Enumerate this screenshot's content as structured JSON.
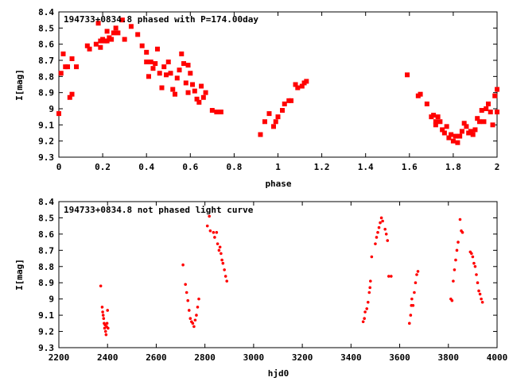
{
  "chart_data": [
    {
      "type": "scatter",
      "title": "194733+0834.8 phased with P=174.00day",
      "xlabel": "phase",
      "ylabel": "I[mag]",
      "xlim": [
        0,
        2
      ],
      "ylim": [
        8.4,
        9.3
      ],
      "y_inverted": true,
      "xticks": [
        "0",
        "0.2",
        "0.4",
        "0.6",
        "0.8",
        "1",
        "1.2",
        "1.4",
        "1.6",
        "1.8",
        "2"
      ],
      "yticks": [
        "8.4",
        "8.5",
        "8.6",
        "8.7",
        "8.8",
        "8.9",
        "9",
        "9.1",
        "9.2",
        "9.3"
      ],
      "marker_color": "#ff0000",
      "points": [
        [
          0.0,
          9.03
        ],
        [
          0.01,
          8.78
        ],
        [
          0.02,
          8.66
        ],
        [
          0.03,
          8.74
        ],
        [
          0.04,
          8.74
        ],
        [
          0.05,
          8.93
        ],
        [
          0.06,
          8.91
        ],
        [
          0.06,
          8.69
        ],
        [
          0.08,
          8.74
        ],
        [
          0.13,
          8.61
        ],
        [
          0.14,
          8.63
        ],
        [
          0.17,
          8.6
        ],
        [
          0.18,
          8.47
        ],
        [
          0.19,
          8.58
        ],
        [
          0.19,
          8.62
        ],
        [
          0.2,
          8.57
        ],
        [
          0.21,
          8.58
        ],
        [
          0.22,
          8.58
        ],
        [
          0.22,
          8.52
        ],
        [
          0.23,
          8.56
        ],
        [
          0.24,
          8.57
        ],
        [
          0.25,
          8.53
        ],
        [
          0.26,
          8.5
        ],
        [
          0.27,
          8.53
        ],
        [
          0.29,
          8.45
        ],
        [
          0.3,
          8.57
        ],
        [
          0.33,
          8.49
        ],
        [
          0.36,
          8.54
        ],
        [
          0.38,
          8.61
        ],
        [
          0.4,
          8.65
        ],
        [
          0.4,
          8.71
        ],
        [
          0.41,
          8.8
        ],
        [
          0.42,
          8.71
        ],
        [
          0.43,
          8.75
        ],
        [
          0.44,
          8.72
        ],
        [
          0.45,
          8.63
        ],
        [
          0.46,
          8.78
        ],
        [
          0.47,
          8.87
        ],
        [
          0.48,
          8.74
        ],
        [
          0.49,
          8.79
        ],
        [
          0.5,
          8.71
        ],
        [
          0.51,
          8.78
        ],
        [
          0.52,
          8.88
        ],
        [
          0.53,
          8.91
        ],
        [
          0.54,
          8.81
        ],
        [
          0.55,
          8.76
        ],
        [
          0.56,
          8.66
        ],
        [
          0.57,
          8.72
        ],
        [
          0.58,
          8.84
        ],
        [
          0.59,
          8.73
        ],
        [
          0.59,
          8.9
        ],
        [
          0.6,
          8.78
        ],
        [
          0.61,
          8.85
        ],
        [
          0.62,
          8.89
        ],
        [
          0.63,
          8.94
        ],
        [
          0.64,
          8.96
        ],
        [
          0.65,
          8.86
        ],
        [
          0.66,
          8.93
        ],
        [
          0.67,
          8.9
        ],
        [
          0.7,
          9.01
        ],
        [
          0.72,
          9.02
        ],
        [
          0.74,
          9.02
        ],
        [
          0.92,
          9.16
        ],
        [
          0.94,
          9.08
        ],
        [
          0.96,
          9.03
        ],
        [
          0.98,
          9.11
        ],
        [
          0.99,
          9.08
        ],
        [
          1.0,
          9.05
        ],
        [
          1.02,
          9.01
        ],
        [
          1.03,
          8.97
        ],
        [
          1.05,
          8.95
        ],
        [
          1.06,
          8.95
        ],
        [
          1.08,
          8.85
        ],
        [
          1.09,
          8.87
        ],
        [
          1.11,
          8.86
        ],
        [
          1.12,
          8.84
        ],
        [
          1.13,
          8.83
        ],
        [
          1.59,
          8.79
        ],
        [
          1.64,
          8.92
        ],
        [
          1.65,
          8.91
        ],
        [
          1.68,
          8.97
        ],
        [
          1.7,
          9.05
        ],
        [
          1.71,
          9.04
        ],
        [
          1.72,
          9.08
        ],
        [
          1.72,
          9.1
        ],
        [
          1.73,
          9.05
        ],
        [
          1.74,
          9.08
        ],
        [
          1.75,
          9.13
        ],
        [
          1.76,
          9.15
        ],
        [
          1.77,
          9.11
        ],
        [
          1.78,
          9.18
        ],
        [
          1.79,
          9.16
        ],
        [
          1.8,
          9.2
        ],
        [
          1.81,
          9.17
        ],
        [
          1.82,
          9.21
        ],
        [
          1.83,
          9.17
        ],
        [
          1.84,
          9.14
        ],
        [
          1.85,
          9.09
        ],
        [
          1.86,
          9.11
        ],
        [
          1.87,
          9.15
        ],
        [
          1.88,
          9.14
        ],
        [
          1.89,
          9.16
        ],
        [
          1.9,
          9.13
        ],
        [
          1.91,
          9.06
        ],
        [
          1.92,
          9.08
        ],
        [
          1.93,
          9.01
        ],
        [
          1.94,
          9.08
        ],
        [
          1.95,
          9.0
        ],
        [
          1.96,
          8.97
        ],
        [
          1.97,
          9.02
        ],
        [
          1.98,
          9.1
        ],
        [
          1.99,
          8.92
        ],
        [
          2.0,
          8.88
        ],
        [
          2.0,
          9.02
        ]
      ]
    },
    {
      "type": "scatter",
      "title": "194733+0834.8 not phased light curve",
      "xlabel": "hjd0",
      "ylabel": "I[mag]",
      "xlim": [
        2200,
        4000
      ],
      "ylim": [
        8.4,
        9.3
      ],
      "y_inverted": true,
      "xticks": [
        "2200",
        "2400",
        "2600",
        "2800",
        "3000",
        "3200",
        "3400",
        "3600",
        "3800",
        "4000"
      ],
      "yticks": [
        "8.4",
        "8.5",
        "8.6",
        "8.7",
        "8.8",
        "8.9",
        "9",
        "9.1",
        "9.2",
        "9.3"
      ],
      "marker_color": "#ff0000",
      "points": [
        [
          2372,
          8.92
        ],
        [
          2378,
          9.05
        ],
        [
          2380,
          9.08
        ],
        [
          2382,
          9.1
        ],
        [
          2384,
          9.12
        ],
        [
          2386,
          9.15
        ],
        [
          2388,
          9.18
        ],
        [
          2390,
          9.16
        ],
        [
          2392,
          9.2
        ],
        [
          2394,
          9.22
        ],
        [
          2396,
          9.17
        ],
        [
          2398,
          9.15
        ],
        [
          2400,
          9.07
        ],
        [
          2402,
          9.18
        ],
        [
          2710,
          8.79
        ],
        [
          2720,
          8.91
        ],
        [
          2725,
          8.96
        ],
        [
          2730,
          9.01
        ],
        [
          2735,
          9.07
        ],
        [
          2740,
          9.12
        ],
        [
          2745,
          9.14
        ],
        [
          2750,
          9.15
        ],
        [
          2755,
          9.17
        ],
        [
          2760,
          9.13
        ],
        [
          2765,
          9.1
        ],
        [
          2770,
          9.05
        ],
        [
          2775,
          9.0
        ],
        [
          2810,
          8.55
        ],
        [
          2818,
          8.49
        ],
        [
          2822,
          8.58
        ],
        [
          2835,
          8.59
        ],
        [
          2840,
          8.62
        ],
        [
          2848,
          8.59
        ],
        [
          2852,
          8.66
        ],
        [
          2858,
          8.7
        ],
        [
          2862,
          8.68
        ],
        [
          2866,
          8.72
        ],
        [
          2870,
          8.76
        ],
        [
          2874,
          8.78
        ],
        [
          2880,
          8.82
        ],
        [
          2885,
          8.86
        ],
        [
          2890,
          8.89
        ],
        [
          3450,
          9.14
        ],
        [
          3455,
          9.12
        ],
        [
          3458,
          9.08
        ],
        [
          3465,
          9.06
        ],
        [
          3470,
          9.02
        ],
        [
          3475,
          8.96
        ],
        [
          3478,
          8.93
        ],
        [
          3480,
          8.89
        ],
        [
          3485,
          8.74
        ],
        [
          3500,
          8.66
        ],
        [
          3505,
          8.62
        ],
        [
          3510,
          8.59
        ],
        [
          3515,
          8.56
        ],
        [
          3520,
          8.53
        ],
        [
          3525,
          8.5
        ],
        [
          3530,
          8.52
        ],
        [
          3540,
          8.57
        ],
        [
          3545,
          8.6
        ],
        [
          3550,
          8.64
        ],
        [
          3555,
          8.86
        ],
        [
          3565,
          8.86
        ],
        [
          3640,
          9.15
        ],
        [
          3645,
          9.1
        ],
        [
          3648,
          9.04
        ],
        [
          3650,
          9.0
        ],
        [
          3655,
          9.04
        ],
        [
          3660,
          8.96
        ],
        [
          3665,
          8.9
        ],
        [
          3670,
          8.85
        ],
        [
          3675,
          8.83
        ],
        [
          3810,
          9.0
        ],
        [
          3815,
          9.01
        ],
        [
          3820,
          8.89
        ],
        [
          3825,
          8.82
        ],
        [
          3830,
          8.76
        ],
        [
          3835,
          8.7
        ],
        [
          3840,
          8.65
        ],
        [
          3848,
          8.51
        ],
        [
          3853,
          8.58
        ],
        [
          3858,
          8.59
        ],
        [
          3890,
          8.71
        ],
        [
          3895,
          8.72
        ],
        [
          3900,
          8.74
        ],
        [
          3905,
          8.78
        ],
        [
          3910,
          8.8
        ],
        [
          3915,
          8.85
        ],
        [
          3920,
          8.9
        ],
        [
          3925,
          8.95
        ],
        [
          3930,
          8.97
        ],
        [
          3935,
          9.0
        ],
        [
          3940,
          9.02
        ]
      ]
    }
  ]
}
